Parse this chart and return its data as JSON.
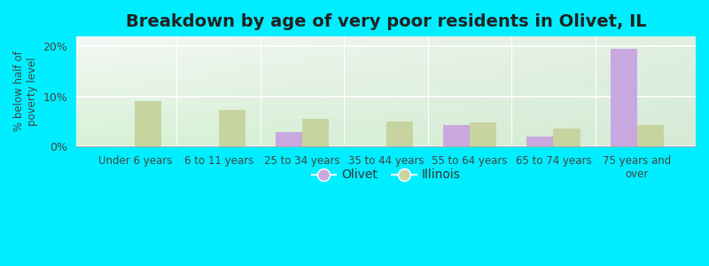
{
  "title": "Breakdown by age of very poor residents in Olivet, IL",
  "ylabel": "% below half of\npoverty level",
  "categories": [
    "Under 6 years",
    "6 to 11 years",
    "25 to 34 years",
    "35 to 44 years",
    "55 to 64 years",
    "65 to 74 years",
    "75 years and\nover"
  ],
  "olivet_values": [
    null,
    null,
    2.8,
    null,
    4.2,
    2.0,
    19.5
  ],
  "illinois_values": [
    9.1,
    7.3,
    5.5,
    5.0,
    4.8,
    3.5,
    4.3
  ],
  "olivet_color": "#c9a8e0",
  "illinois_color": "#c8d4a0",
  "ylim": [
    0,
    22
  ],
  "yticks": [
    0,
    10,
    20
  ],
  "ytick_labels": [
    "0%",
    "10%",
    "20%"
  ],
  "bar_width": 0.32,
  "figsize": [
    8.0,
    3.0
  ],
  "dpi": 100,
  "title_fontsize": 14,
  "outer_bg": "#00eeff",
  "axis_bg": "#e8f4e8",
  "gradient_top_left": "#d8eed0",
  "gradient_top_right": "#e8f8f0",
  "gradient_bottom_left": "#d0e8c8",
  "gradient_bottom_right": "#e0f0e8"
}
